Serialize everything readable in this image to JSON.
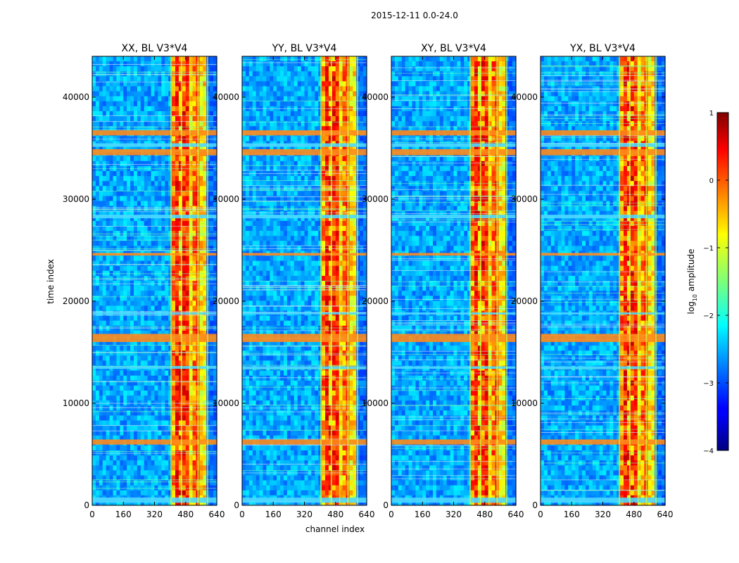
{
  "chart_data": {
    "type": "heatmap",
    "suptitle": "2015-12-11 0.0-24.0",
    "xlabel": "channel index",
    "ylabel": "time index",
    "xlim": [
      0,
      640
    ],
    "ylim": [
      0,
      44000
    ],
    "xticks": [
      0,
      160,
      320,
      480,
      640
    ],
    "yticks": [
      0,
      10000,
      20000,
      30000,
      40000
    ],
    "panels": [
      {
        "title": "XX, BL V3*V4"
      },
      {
        "title": "YY, BL V3*V4"
      },
      {
        "title": "XY, BL V3*V4"
      },
      {
        "title": "YX, BL V3*V4"
      }
    ],
    "colorbar": {
      "label_main": "log",
      "label_sub": "10",
      "label_rest": " amplitude",
      "range": [
        -4,
        1
      ],
      "ticks": [
        1,
        0,
        -1,
        -2,
        -3,
        -4
      ],
      "tick_labels": [
        "1",
        "0",
        "−1",
        "−2",
        "−3",
        "−4"
      ],
      "colormap": "jet"
    },
    "features": {
      "bright_channel_band": [
        400,
        600
      ],
      "rfi_time_bands": [
        {
          "time": 36500,
          "width": 500
        },
        {
          "time": 35300,
          "width": 350
        },
        {
          "time": 34600,
          "width": 600
        },
        {
          "time": 28300,
          "width": 350
        },
        {
          "time": 24600,
          "width": 250
        },
        {
          "time": 18800,
          "width": 200
        },
        {
          "time": 16400,
          "width": 800
        },
        {
          "time": 13500,
          "width": 250
        },
        {
          "time": 6200,
          "width": 500
        },
        {
          "time": 500,
          "width": 500
        }
      ]
    }
  }
}
